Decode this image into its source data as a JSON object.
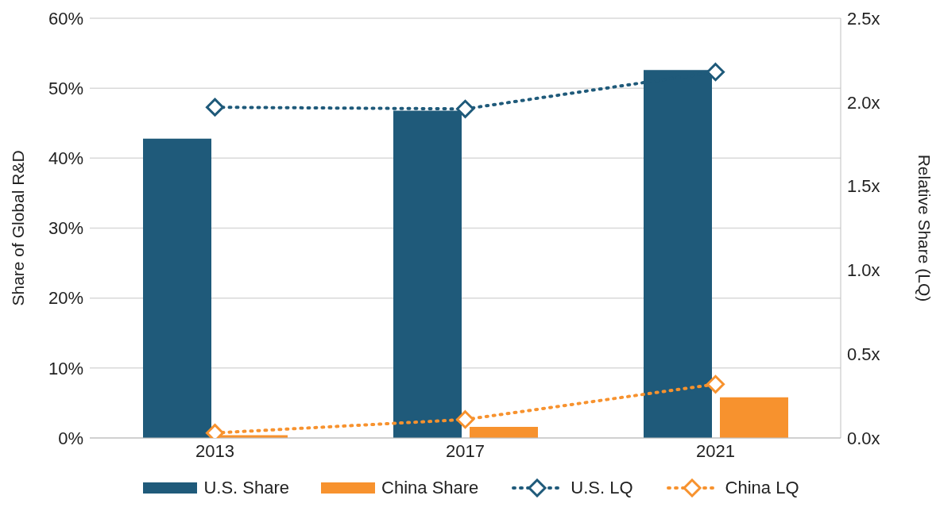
{
  "chart_data": {
    "type": "bar",
    "categories": [
      "2013",
      "2017",
      "2021"
    ],
    "ylabel": "Share of Global R&D",
    "y2label": "Relative Share (LQ)",
    "series": [
      {
        "name": "U.S. Share",
        "color": "#1f5a7a",
        "values": [
          42.8,
          46.8,
          52.6
        ]
      },
      {
        "name": "China Share",
        "color": "#f7922e",
        "values": [
          0.4,
          1.6,
          5.8
        ]
      },
      {
        "name": "U.S. LQ",
        "type": "line",
        "axis": "y2",
        "color": "#1f5a7a",
        "values": [
          1.97,
          1.96,
          2.18
        ]
      },
      {
        "name": "China LQ",
        "type": "line",
        "axis": "y2",
        "color": "#f7922e",
        "values": [
          0.03,
          0.11,
          0.32
        ]
      }
    ],
    "ylim": [
      0,
      60
    ],
    "yticks": [
      {
        "value": 0,
        "label": "0%"
      },
      {
        "value": 10,
        "label": "10%"
      },
      {
        "value": 20,
        "label": "20%"
      },
      {
        "value": 30,
        "label": "30%"
      },
      {
        "value": 40,
        "label": "40%"
      },
      {
        "value": 50,
        "label": "50%"
      },
      {
        "value": 60,
        "label": "60%"
      }
    ],
    "y2lim": [
      0,
      2.5
    ],
    "y2ticks": [
      {
        "value": 0,
        "label": "0.0x"
      },
      {
        "value": 0.5,
        "label": "0.5x"
      },
      {
        "value": 1,
        "label": "1.0x"
      },
      {
        "value": 1.5,
        "label": "1.5x"
      },
      {
        "value": 2,
        "label": "2.0x"
      },
      {
        "value": 2.5,
        "label": "2.5x"
      }
    ],
    "grid": "y",
    "legend": "bottom",
    "marker": "diamond",
    "line_style": "dotted"
  }
}
